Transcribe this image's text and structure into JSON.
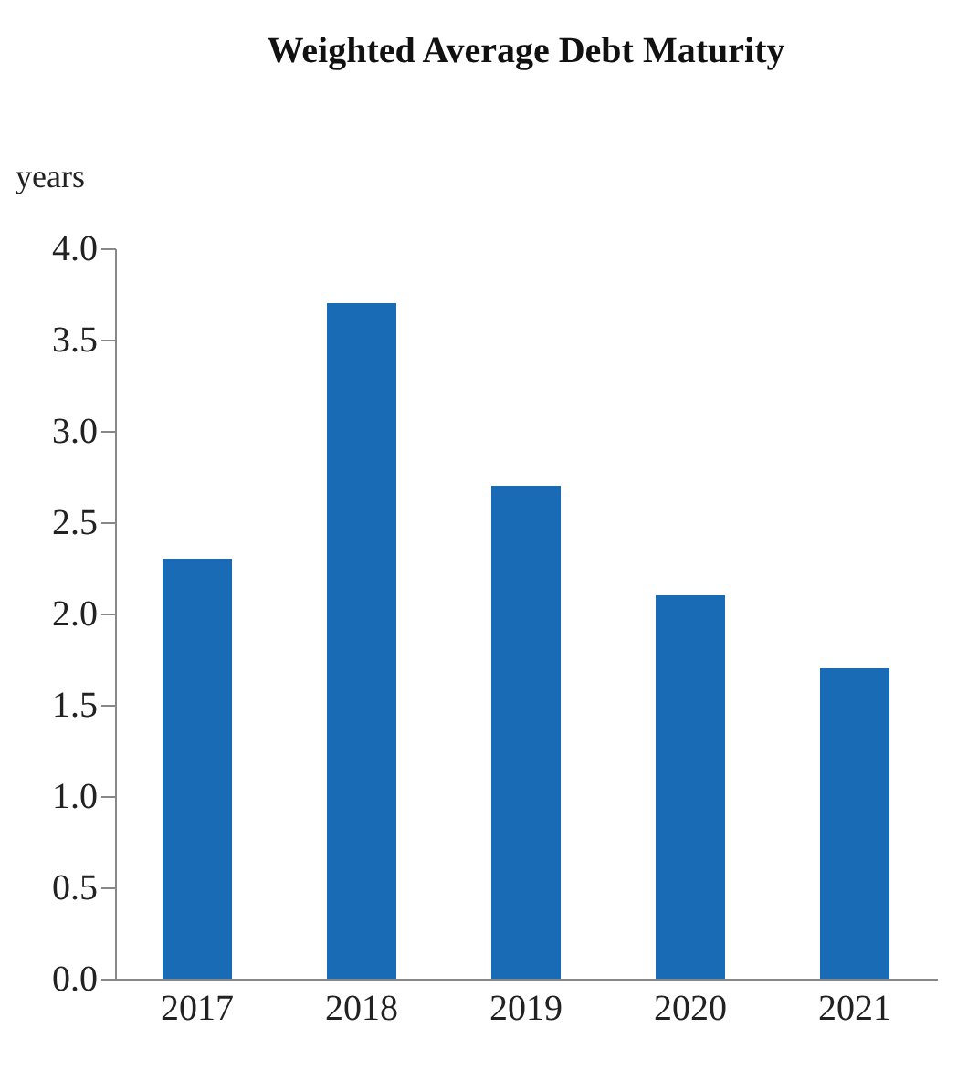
{
  "chart_data": {
    "type": "bar",
    "title": "Weighted Average Debt Maturity",
    "ylabel": "years",
    "categories": [
      "2017",
      "2018",
      "2019",
      "2020",
      "2021"
    ],
    "values": [
      2.3,
      3.7,
      2.7,
      2.1,
      1.7
    ],
    "color": "#1a6bb5",
    "ylim": [
      0,
      4
    ],
    "yticks": [
      {
        "value": 0,
        "label": "0.0"
      },
      {
        "value": 0.5,
        "label": "0.5"
      },
      {
        "value": 1,
        "label": "1.0"
      },
      {
        "value": 1.5,
        "label": "1.5"
      },
      {
        "value": 2,
        "label": "2.0"
      },
      {
        "value": 2.5,
        "label": "2.5"
      },
      {
        "value": 3,
        "label": "3.0"
      },
      {
        "value": 3.5,
        "label": "3.5"
      },
      {
        "value": 4,
        "label": "4.0"
      }
    ],
    "grid": false
  }
}
